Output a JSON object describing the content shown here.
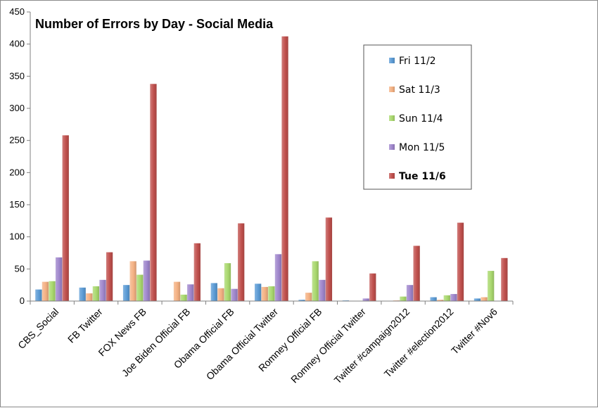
{
  "chart_data": {
    "type": "bar",
    "title": "Number of Errors by Day - Social Media",
    "xlabel": "",
    "ylabel": "",
    "ylim": [
      0,
      450
    ],
    "yticks": [
      0,
      50,
      100,
      150,
      200,
      250,
      300,
      350,
      400,
      450
    ],
    "grid": false,
    "legend_position": "top-right",
    "categories": [
      "CBS_Social",
      "FB Twitter",
      "FOX News FB",
      "Joe Biden Official FB",
      "Obama Official FB",
      "Obama Official Twitter",
      "Romney Official FB",
      "Romney Official Twitter",
      "Twitter #campaign2012",
      "Twitter #election2012",
      "Twitter #Nov6"
    ],
    "series": [
      {
        "name": "Fri 11/2",
        "color": "#5b9bd5",
        "values": [
          18,
          21,
          25,
          0,
          28,
          27,
          2,
          1,
          0,
          6,
          4
        ]
      },
      {
        "name": "Sat 11/3",
        "color": "#f4b183",
        "values": [
          30,
          12,
          62,
          30,
          20,
          22,
          13,
          0,
          1,
          2,
          6
        ]
      },
      {
        "name": "Sun 11/4",
        "color": "#a9d86e",
        "values": [
          31,
          23,
          41,
          10,
          59,
          23,
          62,
          0,
          7,
          9,
          47
        ]
      },
      {
        "name": "Mon 11/5",
        "color": "#9f86cc",
        "values": [
          68,
          33,
          63,
          26,
          19,
          73,
          33,
          4,
          25,
          11,
          0
        ]
      },
      {
        "name": "Tue 11/6",
        "color": "#c0504d",
        "values": [
          258,
          76,
          338,
          90,
          121,
          412,
          130,
          43,
          86,
          122,
          67
        ]
      }
    ]
  }
}
